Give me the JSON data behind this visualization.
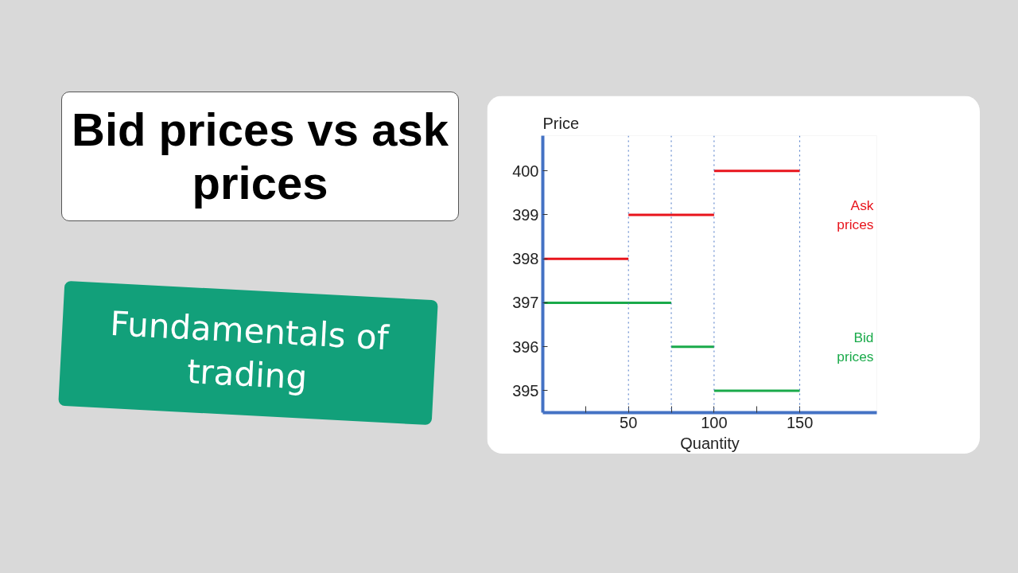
{
  "chart_data": {
    "type": "line",
    "title": "Bid prices vs ask prices",
    "subtitle": "Fundamentals of trading",
    "xlabel": "Quantity",
    "ylabel": "Price",
    "xlim": [
      0,
      195
    ],
    "ylim": [
      394.5,
      400.8
    ],
    "xticks": [
      {
        "value": 25,
        "label": null
      },
      50,
      {
        "value": 75,
        "label": null
      },
      100,
      {
        "value": 125,
        "label": null
      },
      150
    ],
    "yticks": [
      395,
      396,
      397,
      398,
      399,
      400
    ],
    "series": [
      {
        "color": "#e8141c",
        "x": [
          0,
          50
        ],
        "values": [
          398,
          398
        ]
      },
      {
        "color": "#1aaa4a",
        "x": [
          0,
          75
        ],
        "values": [
          397,
          397
        ]
      },
      {
        "color": "#e8141c",
        "x": [
          50,
          100
        ],
        "values": [
          399,
          399
        ]
      },
      {
        "color": "#1aaa4a",
        "x": [
          75,
          100
        ],
        "values": [
          396,
          396
        ]
      },
      {
        "color": "#e8141c",
        "x": [
          100,
          150
        ],
        "values": [
          400,
          400
        ]
      },
      {
        "color": "#1aaa4a",
        "x": [
          100,
          150
        ],
        "values": [
          395,
          395
        ]
      }
    ],
    "ref_lines": [
      {
        "axis": "x",
        "value": 50,
        "color": "#4472c4",
        "line_style": "dotted"
      },
      {
        "axis": "x",
        "value": 75,
        "color": "#4472c4",
        "line_style": "dotted"
      },
      {
        "axis": "x",
        "value": 100,
        "color": "#4472c4",
        "line_style": "dotted"
      },
      {
        "axis": "x",
        "value": 150,
        "color": "#4472c4",
        "line_style": "dotted"
      }
    ],
    "annotations": [
      "Ask\nprices",
      "Bid\nprices"
    ],
    "grid": false
  }
}
